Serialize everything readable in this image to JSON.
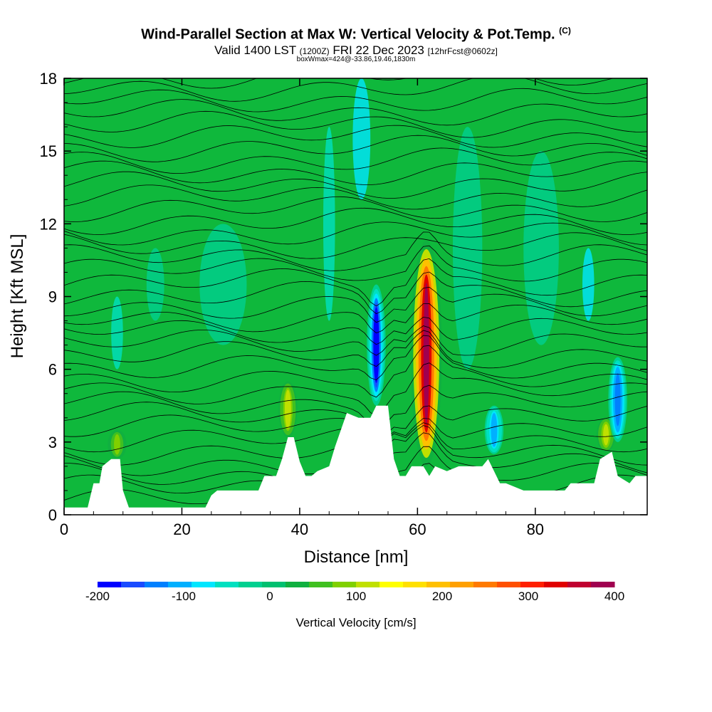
{
  "title": {
    "main": "Wind-Parallel Section at Max W: Vertical Velocity & Pot.Temp.",
    "copyright": "(C)",
    "valid_prefix": "Valid 1400 LST",
    "valid_utc": "(1200Z)",
    "valid_date": "FRI 22 Dec 2023",
    "forecast": "[12hrFcst@0602z]",
    "box_info": "boxWmax=424@-33.86,19.46,1830m"
  },
  "chart_data": {
    "type": "heatmap",
    "xlabel": "Distance [nm]",
    "ylabel": "Height [Kft MSL]",
    "xlim": [
      0,
      99
    ],
    "ylim": [
      0,
      18
    ],
    "xticks": [
      "0",
      "20",
      "40",
      "60",
      "80"
    ],
    "yticks": [
      "0",
      "3",
      "6",
      "9",
      "12",
      "15",
      "18"
    ],
    "colorbar": {
      "label": "Vertical Velocity [cm/s]",
      "ticks": [
        "-200",
        "-100",
        "0",
        "100",
        "200",
        "300",
        "400"
      ],
      "colors": [
        "#0000ff",
        "#1a4bff",
        "#0080ff",
        "#00b0ff",
        "#00e6ff",
        "#00e0c0",
        "#00d090",
        "#00c070",
        "#10b040",
        "#40c020",
        "#80d000",
        "#c0e000",
        "#ffff00",
        "#ffe000",
        "#ffc000",
        "#ffa000",
        "#ff7a00",
        "#ff5000",
        "#ff2000",
        "#e00000",
        "#c00030",
        "#a00050"
      ]
    },
    "terrain": [
      [
        0,
        0.3
      ],
      [
        4,
        0.3
      ],
      [
        5,
        1.3
      ],
      [
        6,
        1.3
      ],
      [
        6.5,
        2.0
      ],
      [
        8,
        2.3
      ],
      [
        9.5,
        2.3
      ],
      [
        10,
        1.0
      ],
      [
        11,
        0.3
      ],
      [
        13,
        0.3
      ],
      [
        17,
        0.3
      ],
      [
        22,
        0.3
      ],
      [
        24,
        0.3
      ],
      [
        25,
        0.8
      ],
      [
        26,
        1.0
      ],
      [
        30,
        1.0
      ],
      [
        33,
        1.0
      ],
      [
        34,
        1.6
      ],
      [
        36,
        1.6
      ],
      [
        37,
        2.3
      ],
      [
        38,
        3.2
      ],
      [
        39,
        3.2
      ],
      [
        40,
        2.2
      ],
      [
        41,
        1.6
      ],
      [
        42,
        1.6
      ],
      [
        43,
        1.8
      ],
      [
        45,
        2.0
      ],
      [
        46,
        2.8
      ],
      [
        47,
        3.5
      ],
      [
        48,
        4.2
      ],
      [
        50,
        4.0
      ],
      [
        52,
        4.0
      ],
      [
        53,
        4.5
      ],
      [
        55,
        4.5
      ],
      [
        56,
        2.3
      ],
      [
        57,
        1.6
      ],
      [
        58,
        1.6
      ],
      [
        59,
        2.0
      ],
      [
        61,
        2.0
      ],
      [
        62,
        1.6
      ],
      [
        63,
        2.0
      ],
      [
        65,
        1.8
      ],
      [
        67,
        2.0
      ],
      [
        71,
        2.0
      ],
      [
        72,
        2.3
      ],
      [
        73,
        1.8
      ],
      [
        74,
        1.3
      ],
      [
        75,
        1.3
      ],
      [
        78,
        1.0
      ],
      [
        85,
        1.0
      ],
      [
        86,
        1.3
      ],
      [
        90,
        1.3
      ],
      [
        91,
        2.3
      ],
      [
        93,
        2.6
      ],
      [
        94,
        1.6
      ],
      [
        96,
        1.3
      ],
      [
        97,
        1.6
      ],
      [
        99,
        1.6
      ]
    ],
    "updrafts": [
      {
        "x": 61.5,
        "z_bottom": 2.0,
        "z_top": 11.3,
        "peak_w": 424
      },
      {
        "x": 38,
        "z_bottom": 3.2,
        "z_top": 5.5,
        "peak_w": 120
      },
      {
        "x": 92,
        "z_bottom": 2.6,
        "z_top": 4.0,
        "peak_w": 110
      },
      {
        "x": 9,
        "z_bottom": 2.3,
        "z_top": 3.5,
        "peak_w": 90
      }
    ],
    "downdrafts": [
      {
        "x": 53,
        "z_bottom": 4.5,
        "z_top": 9.5,
        "peak_w": -200
      },
      {
        "x": 73,
        "z_bottom": 2.5,
        "z_top": 4.5,
        "peak_w": -120
      },
      {
        "x": 94,
        "z_bottom": 3.0,
        "z_top": 6.5,
        "peak_w": -150
      }
    ]
  }
}
